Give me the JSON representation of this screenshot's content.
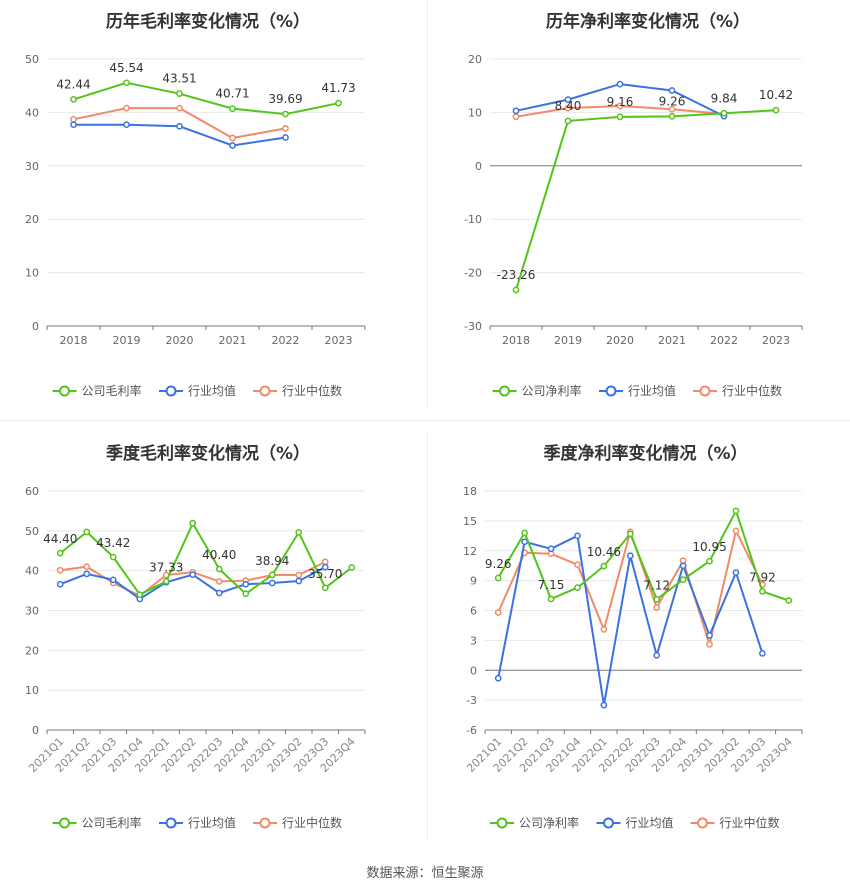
{
  "source": "数据来源：恒生聚源",
  "colors": {
    "company": "#52c41a",
    "avg": "#3a72e0",
    "median": "#f08a67"
  },
  "chart_data": [
    {
      "type": "line",
      "title": "历年毛利率变化情况（%）",
      "categories": [
        "2018",
        "2019",
        "2020",
        "2021",
        "2022",
        "2023"
      ],
      "ylim": [
        0,
        50
      ],
      "yticks": [
        0,
        10,
        20,
        30,
        40,
        50
      ],
      "grid": true,
      "legend": "bottom",
      "series": [
        {
          "name": "公司毛利率",
          "key": "company",
          "values": [
            42.44,
            45.54,
            43.51,
            40.71,
            39.69,
            41.73
          ]
        },
        {
          "name": "行业均值",
          "key": "avg",
          "values": [
            37.7,
            37.7,
            37.4,
            33.8,
            35.3,
            null
          ]
        },
        {
          "name": "行业中位数",
          "key": "median",
          "values": [
            38.7,
            40.8,
            40.8,
            35.2,
            37.0,
            null
          ]
        }
      ],
      "labels": [
        {
          "i": 0,
          "text": "42.44"
        },
        {
          "i": 1,
          "text": "45.54"
        },
        {
          "i": 2,
          "text": "43.51"
        },
        {
          "i": 3,
          "text": "40.71"
        },
        {
          "i": 4,
          "text": "39.69"
        },
        {
          "i": 5,
          "text": "41.73"
        }
      ]
    },
    {
      "type": "line",
      "title": "历年净利率变化情况（%）",
      "categories": [
        "2018",
        "2019",
        "2020",
        "2021",
        "2022",
        "2023"
      ],
      "ylim": [
        -30,
        20
      ],
      "yticks": [
        -30,
        -20,
        -10,
        0,
        10,
        20
      ],
      "grid": true,
      "legend": "bottom",
      "series": [
        {
          "name": "公司净利率",
          "key": "company",
          "values": [
            -23.26,
            8.4,
            9.16,
            9.26,
            9.84,
            10.42
          ]
        },
        {
          "name": "行业均值",
          "key": "avg",
          "values": [
            10.3,
            12.4,
            15.3,
            14.1,
            9.3,
            null
          ]
        },
        {
          "name": "行业中位数",
          "key": "median",
          "values": [
            9.2,
            10.8,
            11.2,
            10.6,
            9.7,
            null
          ]
        }
      ],
      "labels": [
        {
          "i": 0,
          "text": "-23.26"
        },
        {
          "i": 1,
          "text": "8.40"
        },
        {
          "i": 2,
          "text": "9.16"
        },
        {
          "i": 3,
          "text": "9.26"
        },
        {
          "i": 4,
          "text": "9.84"
        },
        {
          "i": 5,
          "text": "10.42"
        }
      ]
    },
    {
      "type": "line",
      "title": "季度毛利率变化情况（%）",
      "categories": [
        "2021Q1",
        "2021Q2",
        "2021Q3",
        "2021Q4",
        "2022Q1",
        "2022Q2",
        "2022Q3",
        "2022Q4",
        "2023Q1",
        "2023Q2",
        "2023Q3",
        "2023Q4"
      ],
      "ylim": [
        0,
        60
      ],
      "yticks": [
        0,
        10,
        20,
        30,
        40,
        50,
        60
      ],
      "grid": true,
      "legend": "bottom",
      "series": [
        {
          "name": "公司毛利率",
          "key": "company",
          "values": [
            44.4,
            49.7,
            43.42,
            34.0,
            37.33,
            51.9,
            40.4,
            34.2,
            38.94,
            49.6,
            35.7,
            40.8
          ]
        },
        {
          "name": "行业均值",
          "key": "avg",
          "values": [
            36.6,
            39.2,
            37.7,
            32.9,
            37.1,
            39.0,
            34.4,
            36.6,
            36.9,
            37.4,
            40.9,
            null
          ]
        },
        {
          "name": "行业中位数",
          "key": "median",
          "values": [
            40.1,
            41.0,
            36.9,
            33.7,
            38.9,
            39.6,
            37.3,
            37.5,
            38.9,
            38.9,
            42.2,
            null
          ]
        }
      ],
      "labels": [
        {
          "i": 0,
          "text": "44.40"
        },
        {
          "i": 2,
          "text": "43.42"
        },
        {
          "i": 4,
          "text": "37.33"
        },
        {
          "i": 6,
          "text": "40.40"
        },
        {
          "i": 8,
          "text": "38.94"
        },
        {
          "i": 10,
          "text": "35.70"
        }
      ]
    },
    {
      "type": "line",
      "title": "季度净利率变化情况（%）",
      "categories": [
        "2021Q1",
        "2021Q2",
        "2021Q3",
        "2021Q4",
        "2022Q1",
        "2022Q2",
        "2022Q3",
        "2022Q4",
        "2023Q1",
        "2023Q2",
        "2023Q3",
        "2023Q4"
      ],
      "ylim": [
        -6,
        18
      ],
      "yticks": [
        -6,
        -3,
        0,
        3,
        6,
        9,
        12,
        15,
        18
      ],
      "grid": true,
      "legend": "bottom",
      "series": [
        {
          "name": "公司净利率",
          "key": "company",
          "values": [
            9.26,
            13.8,
            7.15,
            8.3,
            10.46,
            13.7,
            7.12,
            9.1,
            10.95,
            16.0,
            7.92,
            7.0
          ]
        },
        {
          "name": "行业均值",
          "key": "avg",
          "values": [
            -0.8,
            12.9,
            12.2,
            13.5,
            -3.5,
            11.5,
            1.5,
            10.5,
            3.5,
            9.8,
            1.7,
            null
          ]
        },
        {
          "name": "行业中位数",
          "key": "median",
          "values": [
            5.8,
            11.8,
            11.7,
            10.6,
            4.1,
            13.9,
            6.3,
            11.0,
            2.6,
            14.0,
            8.6,
            null
          ]
        }
      ],
      "labels": [
        {
          "i": 0,
          "text": "9.26"
        },
        {
          "i": 2,
          "text": "7.15"
        },
        {
          "i": 4,
          "text": "10.46"
        },
        {
          "i": 6,
          "text": "7.12"
        },
        {
          "i": 8,
          "text": "10.95"
        },
        {
          "i": 10,
          "text": "7.92"
        }
      ]
    }
  ]
}
